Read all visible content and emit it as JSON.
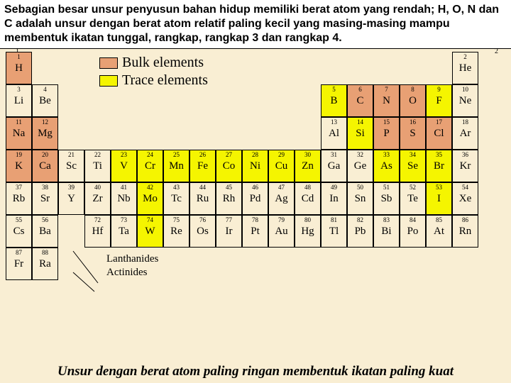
{
  "header": "Sebagian besar unsur penyusun bahan hidup memiliki berat atom yang rendah; H, O, N dan C adalah unsur dengan berat atom relatif paling kecil yang masing-masing mampu membentuk ikatan tunggal, rangkap, rangkap 3 dan rangkap 4.",
  "legend": {
    "bulk": {
      "label": "Bulk elements",
      "color": "#e8a074"
    },
    "trace": {
      "label": "Trace elements",
      "color": "#f5f500"
    }
  },
  "groupLabels": {
    "g1": "1",
    "g2": "2"
  },
  "footer": "Unsur dengan berat atom paling ringan membentuk ikatan paling kuat",
  "lanth": "Lanthanides",
  "act": "Actinides",
  "colors": {
    "bg": "#f9eed3",
    "bulk": "#e8a074",
    "trace": "#f5f500",
    "white": "#ffffff"
  },
  "elements": {
    "H": {
      "n": "1",
      "s": "H",
      "c": "bulk"
    },
    "He": {
      "n": "2",
      "s": "He",
      "c": ""
    },
    "Li": {
      "n": "3",
      "s": "Li",
      "c": ""
    },
    "Be": {
      "n": "4",
      "s": "Be",
      "c": ""
    },
    "B": {
      "n": "5",
      "s": "B",
      "c": "trace"
    },
    "C": {
      "n": "6",
      "s": "C",
      "c": "bulk"
    },
    "N": {
      "n": "7",
      "s": "N",
      "c": "bulk"
    },
    "O": {
      "n": "8",
      "s": "O",
      "c": "bulk"
    },
    "F": {
      "n": "9",
      "s": "F",
      "c": "trace"
    },
    "Ne": {
      "n": "10",
      "s": "Ne",
      "c": ""
    },
    "Na": {
      "n": "11",
      "s": "Na",
      "c": "bulk"
    },
    "Mg": {
      "n": "12",
      "s": "Mg",
      "c": "bulk"
    },
    "Al": {
      "n": "13",
      "s": "Al",
      "c": ""
    },
    "Si": {
      "n": "14",
      "s": "Si",
      "c": "trace"
    },
    "P": {
      "n": "15",
      "s": "P",
      "c": "bulk"
    },
    "S": {
      "n": "16",
      "s": "S",
      "c": "bulk"
    },
    "Cl": {
      "n": "17",
      "s": "Cl",
      "c": "bulk"
    },
    "Ar": {
      "n": "18",
      "s": "Ar",
      "c": ""
    },
    "K": {
      "n": "19",
      "s": "K",
      "c": "bulk"
    },
    "Ca": {
      "n": "20",
      "s": "Ca",
      "c": "bulk"
    },
    "Sc": {
      "n": "21",
      "s": "Sc",
      "c": ""
    },
    "Ti": {
      "n": "22",
      "s": "Ti",
      "c": ""
    },
    "V": {
      "n": "23",
      "s": "V",
      "c": "trace"
    },
    "Cr": {
      "n": "24",
      "s": "Cr",
      "c": "trace"
    },
    "Mn": {
      "n": "25",
      "s": "Mn",
      "c": "trace"
    },
    "Fe": {
      "n": "26",
      "s": "Fe",
      "c": "trace"
    },
    "Co": {
      "n": "27",
      "s": "Co",
      "c": "trace"
    },
    "Ni": {
      "n": "28",
      "s": "Ni",
      "c": "trace"
    },
    "Cu": {
      "n": "29",
      "s": "Cu",
      "c": "trace"
    },
    "Zn": {
      "n": "30",
      "s": "Zn",
      "c": "trace"
    },
    "Ga": {
      "n": "31",
      "s": "Ga",
      "c": ""
    },
    "Ge": {
      "n": "32",
      "s": "Ge",
      "c": ""
    },
    "As": {
      "n": "33",
      "s": "As",
      "c": "trace"
    },
    "Se": {
      "n": "34",
      "s": "Se",
      "c": "trace"
    },
    "Br": {
      "n": "35",
      "s": "Br",
      "c": "trace"
    },
    "Kr": {
      "n": "36",
      "s": "Kr",
      "c": ""
    },
    "Rb": {
      "n": "37",
      "s": "Rb",
      "c": ""
    },
    "Sr": {
      "n": "38",
      "s": "Sr",
      "c": ""
    },
    "Y": {
      "n": "39",
      "s": "Y",
      "c": ""
    },
    "Zr": {
      "n": "40",
      "s": "Zr",
      "c": ""
    },
    "Nb": {
      "n": "41",
      "s": "Nb",
      "c": ""
    },
    "Mo": {
      "n": "42",
      "s": "Mo",
      "c": "trace"
    },
    "Tc": {
      "n": "43",
      "s": "Tc",
      "c": ""
    },
    "Ru": {
      "n": "44",
      "s": "Ru",
      "c": ""
    },
    "Rh": {
      "n": "45",
      "s": "Rh",
      "c": ""
    },
    "Pd": {
      "n": "46",
      "s": "Pd",
      "c": ""
    },
    "Ag": {
      "n": "47",
      "s": "Ag",
      "c": ""
    },
    "Cd": {
      "n": "48",
      "s": "Cd",
      "c": ""
    },
    "In": {
      "n": "49",
      "s": "In",
      "c": ""
    },
    "Sn": {
      "n": "50",
      "s": "Sn",
      "c": ""
    },
    "Sb": {
      "n": "51",
      "s": "Sb",
      "c": ""
    },
    "Te": {
      "n": "52",
      "s": "Te",
      "c": ""
    },
    "I": {
      "n": "53",
      "s": "I",
      "c": "trace"
    },
    "Xe": {
      "n": "54",
      "s": "Xe",
      "c": ""
    },
    "Cs": {
      "n": "55",
      "s": "Cs",
      "c": ""
    },
    "Ba": {
      "n": "56",
      "s": "Ba",
      "c": ""
    },
    "Hf": {
      "n": "72",
      "s": "Hf",
      "c": ""
    },
    "Ta": {
      "n": "73",
      "s": "Ta",
      "c": ""
    },
    "W": {
      "n": "74",
      "s": "W",
      "c": "trace"
    },
    "Re": {
      "n": "75",
      "s": "Re",
      "c": ""
    },
    "Os": {
      "n": "76",
      "s": "Os",
      "c": ""
    },
    "Ir": {
      "n": "77",
      "s": "Ir",
      "c": ""
    },
    "Pt": {
      "n": "78",
      "s": "Pt",
      "c": ""
    },
    "Au": {
      "n": "79",
      "s": "Au",
      "c": ""
    },
    "Hg": {
      "n": "80",
      "s": "Hg",
      "c": ""
    },
    "Tl": {
      "n": "81",
      "s": "Tl",
      "c": ""
    },
    "Pb": {
      "n": "82",
      "s": "Pb",
      "c": ""
    },
    "Bi": {
      "n": "83",
      "s": "Bi",
      "c": ""
    },
    "Po": {
      "n": "84",
      "s": "Po",
      "c": ""
    },
    "At": {
      "n": "85",
      "s": "At",
      "c": ""
    },
    "Rn": {
      "n": "86",
      "s": "Rn",
      "c": ""
    },
    "Fr": {
      "n": "87",
      "s": "Fr",
      "c": ""
    },
    "Ra": {
      "n": "88",
      "s": "Ra",
      "c": ""
    }
  },
  "layout": [
    [
      "H",
      "",
      "",
      "",
      "",
      "",
      "",
      "",
      "",
      "",
      "",
      "",
      "",
      "",
      "",
      "",
      "",
      "He"
    ],
    [
      "Li",
      "Be",
      "",
      "",
      "",
      "",
      "",
      "",
      "",
      "",
      "",
      "",
      "B",
      "C",
      "N",
      "O",
      "F",
      "Ne"
    ],
    [
      "Na",
      "Mg",
      "",
      "",
      "",
      "",
      "",
      "",
      "",
      "",
      "",
      "",
      "Al",
      "Si",
      "P",
      "S",
      "Cl",
      "Ar"
    ],
    [
      "K",
      "Ca",
      "Sc",
      "Ti",
      "V",
      "Cr",
      "Mn",
      "Fe",
      "Co",
      "Ni",
      "Cu",
      "Zn",
      "Ga",
      "Ge",
      "As",
      "Se",
      "Br",
      "Kr"
    ],
    [
      "Rb",
      "Sr",
      "Y",
      "Zr",
      "Nb",
      "Mo",
      "Tc",
      "Ru",
      "Rh",
      "Pd",
      "Ag",
      "Cd",
      "In",
      "Sn",
      "Sb",
      "Te",
      "I",
      "Xe"
    ],
    [
      "Cs",
      "Ba",
      "*",
      "Hf",
      "Ta",
      "W",
      "Re",
      "Os",
      "Ir",
      "Pt",
      "Au",
      "Hg",
      "Tl",
      "Pb",
      "Bi",
      "Po",
      "At",
      "Rn"
    ],
    [
      "Fr",
      "Ra",
      "*",
      "",
      "",
      "",
      "",
      "",
      "",
      "",
      "",
      "",
      "",
      "",
      "",
      "",
      "",
      ""
    ]
  ]
}
